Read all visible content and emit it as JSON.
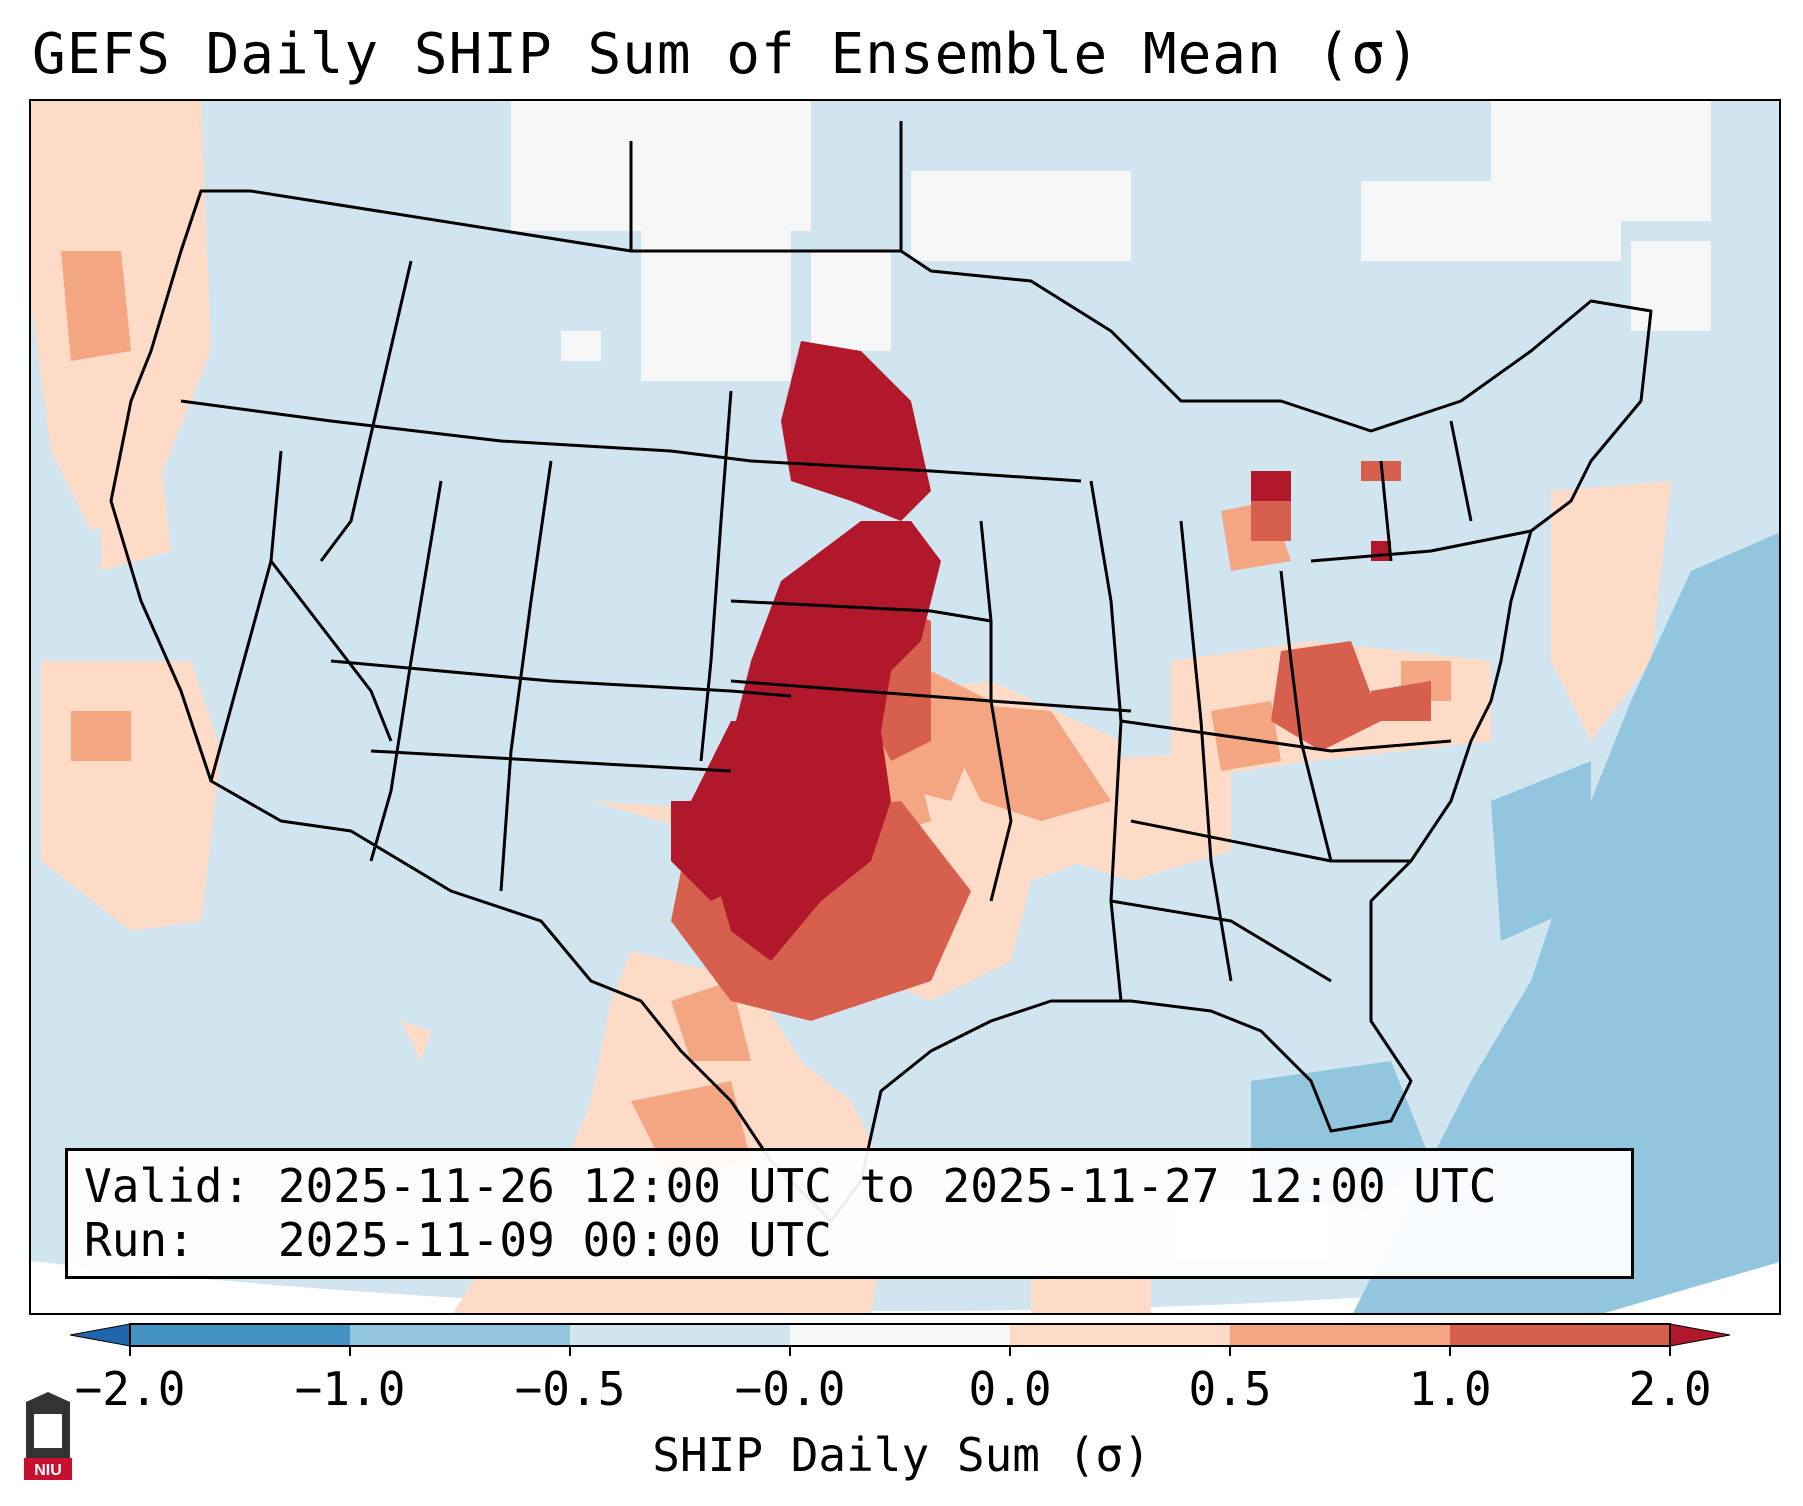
{
  "title": "GEFS Daily SHIP Sum of Ensemble Mean (σ)",
  "info": {
    "valid_label": "Valid:",
    "valid_value": "2025-11-26 12:00 UTC to 2025-11-27 12:00 UTC",
    "run_label": "Run:",
    "run_value": "2025-11-09 00:00 UTC"
  },
  "colorbar": {
    "label": "SHIP Daily Sum (σ)",
    "ticks": [
      "−2.0",
      "−1.0",
      "−0.5",
      "−0.0",
      "0.0",
      "0.5",
      "1.0",
      "2.0"
    ],
    "bin_colors": [
      "#2166ac",
      "#4393c3",
      "#92c5de",
      "#d1e5f0",
      "#f7f7f7",
      "#fddbc7",
      "#f4a582",
      "#d6604d",
      "#b2182b"
    ],
    "extend": "both"
  },
  "map": {
    "region": "Contiguous United States",
    "ocean_fill_color": "#d1e5f0",
    "outside_projection_color": "#ffffff",
    "boundary_color": "#000000"
  },
  "logo": {
    "text": "NIU",
    "color": "#c8102e"
  }
}
